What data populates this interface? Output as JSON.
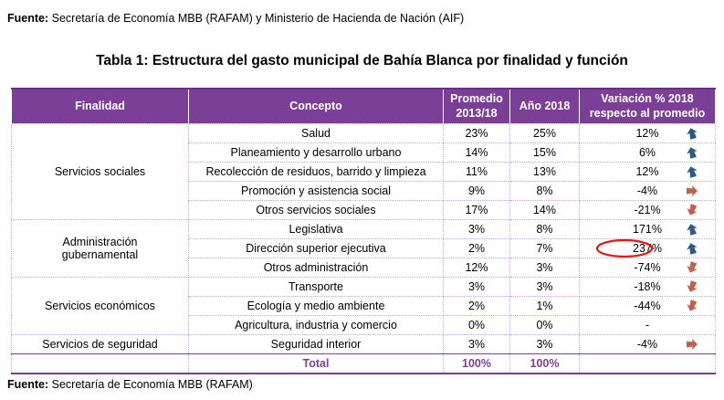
{
  "source_top": {
    "label": "Fuente:",
    "text": " Secretaría de Economía MBB (RAFAM) y Ministerio de Hacienda de Nación (AIF)"
  },
  "title": "Tabla 1: Estructura del gasto municipal de Bahía Blanca por finalidad y función",
  "headers": {
    "finalidad": "Finalidad",
    "concepto": "Concepto",
    "promedio_1": "Promedio",
    "promedio_2": "2013/18",
    "anio": "Año 2018",
    "variacion_1": "Variación % 2018",
    "variacion_2": "respecto al promedio"
  },
  "groups": [
    {
      "finalidad": "Servicios sociales",
      "finalidad_lines": [
        "Servicios sociales"
      ],
      "rows": [
        {
          "concepto": "Salud",
          "promedio": "23%",
          "anio": "25%",
          "variacion": "12%",
          "arrow": "up"
        },
        {
          "concepto": "Planeamiento y desarrollo urbano",
          "promedio": "14%",
          "anio": "15%",
          "variacion": "6%",
          "arrow": "up"
        },
        {
          "concepto": "Recolección de residuos, barrido y limpieza",
          "promedio": "11%",
          "anio": "13%",
          "variacion": "12%",
          "arrow": "up"
        },
        {
          "concepto": "Promoción y asistencia social",
          "promedio": "9%",
          "anio": "8%",
          "variacion": "-4%",
          "arrow": "right"
        },
        {
          "concepto": "Otros servicios sociales",
          "promedio": "17%",
          "anio": "14%",
          "variacion": "-21%",
          "arrow": "down"
        }
      ]
    },
    {
      "finalidad": "Administración gubernamental",
      "finalidad_lines": [
        "Administración",
        "gubernamental"
      ],
      "rows": [
        {
          "concepto": "Legislativa",
          "promedio": "3%",
          "anio": "8%",
          "variacion": "171%",
          "arrow": "up"
        },
        {
          "concepto": "Dirección superior ejecutiva",
          "promedio": "2%",
          "anio": "7%",
          "variacion": "237%",
          "arrow": "up",
          "highlight": true
        },
        {
          "concepto": "Otros administración",
          "promedio": "12%",
          "anio": "3%",
          "variacion": "-74%",
          "arrow": "down"
        }
      ]
    },
    {
      "finalidad": "Servicios económicos",
      "finalidad_lines": [
        "Servicios económicos"
      ],
      "rows": [
        {
          "concepto": "Transporte",
          "promedio": "3%",
          "anio": "3%",
          "variacion": "-18%",
          "arrow": "down"
        },
        {
          "concepto": "Ecología y medio ambiente",
          "promedio": "2%",
          "anio": "1%",
          "variacion": "-44%",
          "arrow": "down"
        },
        {
          "concepto": "Agricultura, industria y comercio",
          "promedio": "0%",
          "anio": "0%",
          "variacion": "-",
          "arrow": "none"
        }
      ]
    },
    {
      "finalidad": "Servicios de seguridad",
      "finalidad_lines": [
        "Servicios de seguridad"
      ],
      "rows": [
        {
          "concepto": "Seguridad interior",
          "promedio": "3%",
          "anio": "3%",
          "variacion": "-4%",
          "arrow": "right"
        }
      ]
    }
  ],
  "total": {
    "label": "Total",
    "promedio": "100%",
    "anio": "100%"
  },
  "source_bottom": {
    "label": "Fuente:",
    "text": " Secretaría de Economía MBB (RAFAM)"
  },
  "colors": {
    "header_bg": "#7b3f98",
    "arrow_up": "#2e5a8a",
    "arrow_down": "#c0614a",
    "highlight": "#e01818"
  }
}
